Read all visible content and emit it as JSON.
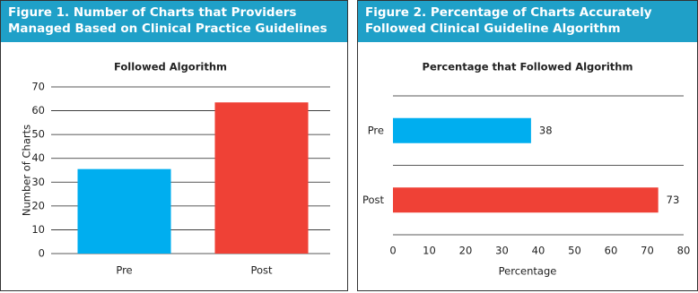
{
  "chart_data": [
    {
      "type": "bar",
      "orientation": "vertical",
      "caption": "Figure 1. Number of Charts that Providers Managed Based on Clinical Practice Guidelines",
      "title": "Followed Algorithm",
      "ylabel": "Number of Charts",
      "categories": [
        "Pre",
        "Post"
      ],
      "values": [
        35.5,
        63.5
      ],
      "colors": [
        "#00aeef",
        "#ef4136"
      ],
      "ylim": [
        0,
        70
      ],
      "yticks": [
        0,
        10,
        20,
        30,
        40,
        50,
        60,
        70
      ],
      "grid": true
    },
    {
      "type": "bar",
      "orientation": "horizontal",
      "caption": "Figure 2. Percentage of Charts Accurately Followed Clinical Guideline Algorithm",
      "title": "Percentage that Followed Algorithm",
      "xlabel": "Percentage",
      "categories": [
        "Pre",
        "Post"
      ],
      "values": [
        38,
        73
      ],
      "colors": [
        "#00aeef",
        "#ef4136"
      ],
      "xlim": [
        0,
        80
      ],
      "xticks": [
        0,
        10,
        20,
        30,
        40,
        50,
        60,
        70,
        80
      ],
      "grid": false
    }
  ]
}
